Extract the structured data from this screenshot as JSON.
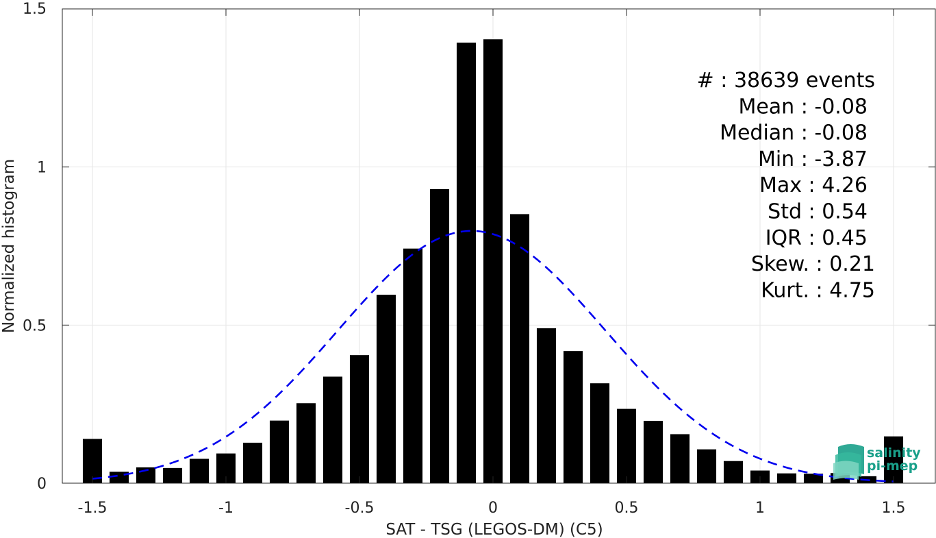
{
  "chart_data": {
    "type": "bar",
    "xlabel": "SAT - TSG (LEGOS-DM) (C5)",
    "ylabel": "Normalized histogram",
    "xlim": [
      -1.55,
      1.6
    ],
    "ylim": [
      0,
      1.5
    ],
    "x_ticks": [
      -1.5,
      -1,
      -0.5,
      0,
      0.5,
      1,
      1.5
    ],
    "x_tick_labels": [
      "-1.5",
      "-1",
      "-0.5",
      "0",
      "0.5",
      "1",
      "1.5"
    ],
    "y_ticks": [
      0,
      0.5,
      1,
      1.5
    ],
    "y_tick_labels": [
      "0",
      "0.5",
      "1",
      "1.5"
    ],
    "grid": true,
    "bin_width": 0.1,
    "bar_color": "#000000",
    "bars": [
      {
        "x": -1.5,
        "y": 0.14
      },
      {
        "x": -1.4,
        "y": 0.036
      },
      {
        "x": -1.3,
        "y": 0.05
      },
      {
        "x": -1.2,
        "y": 0.048
      },
      {
        "x": -1.1,
        "y": 0.077
      },
      {
        "x": -1.0,
        "y": 0.094
      },
      {
        "x": -0.9,
        "y": 0.128
      },
      {
        "x": -0.8,
        "y": 0.198
      },
      {
        "x": -0.7,
        "y": 0.253
      },
      {
        "x": -0.6,
        "y": 0.337
      },
      {
        "x": -0.5,
        "y": 0.405
      },
      {
        "x": -0.4,
        "y": 0.596
      },
      {
        "x": -0.3,
        "y": 0.742
      },
      {
        "x": -0.2,
        "y": 0.93
      },
      {
        "x": -0.1,
        "y": 1.393
      },
      {
        "x": 0.0,
        "y": 1.404
      },
      {
        "x": 0.1,
        "y": 0.851
      },
      {
        "x": 0.2,
        "y": 0.49
      },
      {
        "x": 0.3,
        "y": 0.418
      },
      {
        "x": 0.4,
        "y": 0.316
      },
      {
        "x": 0.5,
        "y": 0.235
      },
      {
        "x": 0.6,
        "y": 0.197
      },
      {
        "x": 0.7,
        "y": 0.155
      },
      {
        "x": 0.8,
        "y": 0.107
      },
      {
        "x": 0.9,
        "y": 0.07
      },
      {
        "x": 1.0,
        "y": 0.04
      },
      {
        "x": 1.1,
        "y": 0.031
      },
      {
        "x": 1.2,
        "y": 0.03
      },
      {
        "x": 1.3,
        "y": 0.032
      },
      {
        "x": 1.4,
        "y": 0.022
      },
      {
        "x": 1.5,
        "y": 0.148
      }
    ],
    "fit_curve": {
      "style": "dashed",
      "color": "#0000ee",
      "mean": -0.08,
      "std": 0.5,
      "x_range": [
        -1.5,
        1.5
      ]
    },
    "stats": [
      {
        "label": "#  : 38639 events"
      },
      {
        "label": "Mean : -0.08"
      },
      {
        "label": "Median : -0.08"
      },
      {
        "label": "Min : -3.87"
      },
      {
        "label": "Max : 4.26"
      },
      {
        "label": "Std : 0.54"
      },
      {
        "label": "IQR : 0.45"
      },
      {
        "label": "Skew. : 0.21"
      },
      {
        "label": "Kurt. : 4.75"
      }
    ]
  },
  "logo": {
    "line1": "salinity",
    "line2": "pi-mep",
    "color": "#1aa08a"
  }
}
